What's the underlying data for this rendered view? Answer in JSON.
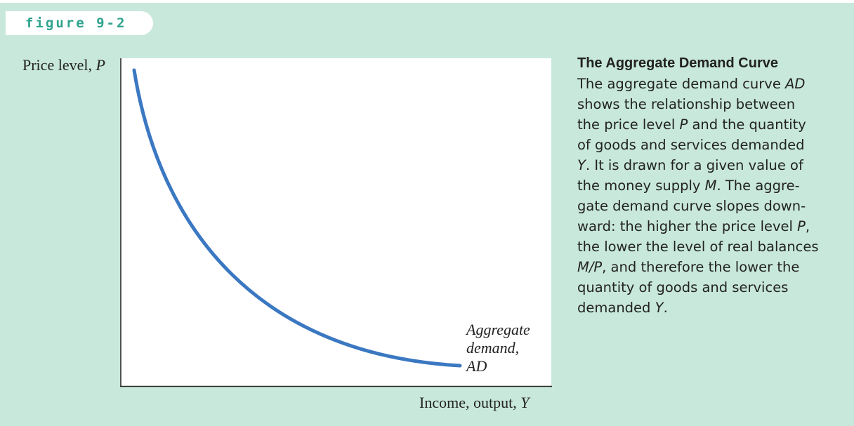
{
  "figure_label": "figure 9-2",
  "y_axis_label": [
    "Price level, ",
    "P"
  ],
  "x_axis_label": [
    "Income, output, ",
    "Y"
  ],
  "curve_label": [
    "Aggregate",
    "demand,",
    "AD"
  ],
  "caption": {
    "title": "The Aggregate Demand Curve",
    "lines": [
      [
        "The aggregate demand curve ",
        "AD"
      ],
      [
        "shows the relationship between"
      ],
      [
        "the price level ",
        "P",
        " and the quantity"
      ],
      [
        "of goods and services demanded"
      ],
      [
        "Y",
        ". It is drawn for a given value of"
      ],
      [
        "the money supply ",
        "M",
        ". The aggre-"
      ],
      [
        "gate demand curve slopes down-"
      ],
      [
        "ward: the higher the price level ",
        "P",
        ","
      ],
      [
        "the lower the level of real balances"
      ],
      [
        "M/P",
        ", and therefore the lower the"
      ],
      [
        "quantity of goods and services"
      ],
      [
        "demanded ",
        "Y",
        "."
      ]
    ]
  }
}
